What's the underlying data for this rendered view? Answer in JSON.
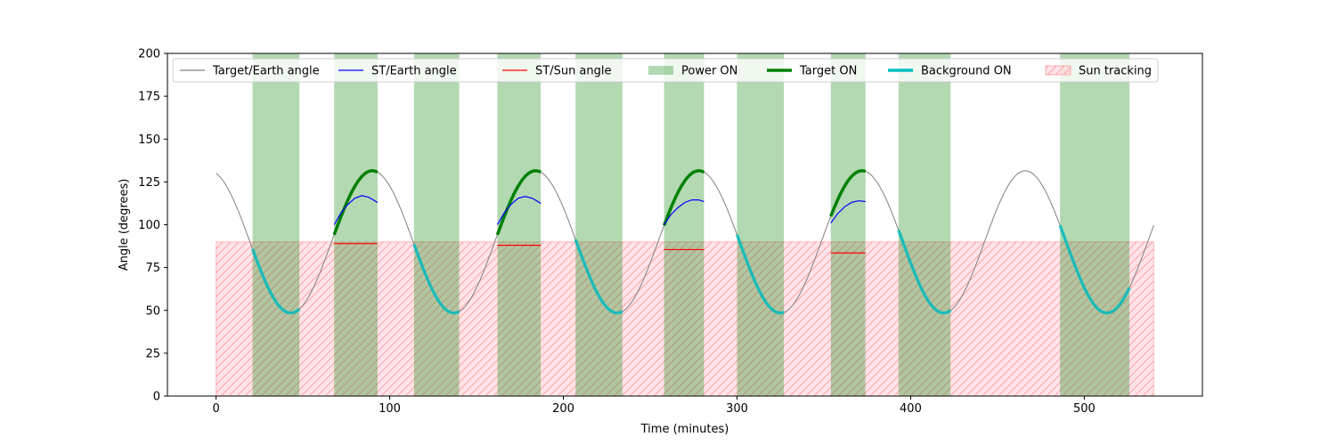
{
  "chart_data": {
    "type": "line",
    "title": "",
    "xlabel": "Time (minutes)",
    "ylabel": "Angle (degrees)",
    "xlim": [
      -28,
      568
    ],
    "ylim": [
      0,
      200
    ],
    "xticks": [
      0,
      100,
      200,
      300,
      400,
      500
    ],
    "yticks": [
      0,
      25,
      50,
      75,
      100,
      125,
      150,
      175,
      200
    ],
    "grid": false,
    "legend_position": "top",
    "legend": [
      {
        "label": "Target/Earth angle",
        "kind": "line",
        "color": "#808080"
      },
      {
        "label": "ST/Earth angle",
        "kind": "line",
        "color": "#0000ff"
      },
      {
        "label": "ST/Sun angle",
        "kind": "line",
        "color": "#ff0000"
      },
      {
        "label": "Power ON",
        "kind": "patch",
        "color": "#008000"
      },
      {
        "label": "Target ON",
        "kind": "thickline",
        "color": "#008000"
      },
      {
        "label": "Background ON",
        "kind": "thickline",
        "color": "#00bfbf"
      },
      {
        "label": "Sun tracking",
        "kind": "hatch",
        "color": "#ff9999"
      }
    ],
    "target_earth_angle": {
      "color": "#808080",
      "mean": 90.0,
      "amplitude": 41.5,
      "period": 94.0,
      "phase_peak_time": 90.0,
      "x_range": [
        0,
        540
      ]
    },
    "sun_tracking": {
      "color": "#ff9999",
      "x_range": [
        0,
        540
      ],
      "y_range": [
        0,
        90
      ]
    },
    "power_on_intervals": [
      [
        21,
        48
      ],
      [
        68,
        93
      ],
      [
        114,
        140
      ],
      [
        162,
        187
      ],
      [
        207,
        234
      ],
      [
        258,
        281
      ],
      [
        300,
        327
      ],
      [
        354,
        374
      ],
      [
        393,
        423
      ],
      [
        486,
        526
      ]
    ],
    "target_on_intervals": [
      [
        68,
        93
      ],
      [
        162,
        187
      ],
      [
        258,
        281
      ],
      [
        354,
        374
      ]
    ],
    "background_on_intervals": [
      [
        21,
        48
      ],
      [
        114,
        140
      ],
      [
        207,
        234
      ],
      [
        300,
        327
      ],
      [
        393,
        423
      ],
      [
        486,
        526
      ]
    ],
    "st_earth_angle_segments": [
      {
        "x": [
          68,
          72,
          76,
          80,
          84,
          88,
          93
        ],
        "y": [
          100,
          107,
          112,
          115.5,
          117,
          116,
          113
        ]
      },
      {
        "x": [
          162,
          166,
          170,
          174,
          178,
          182,
          187
        ],
        "y": [
          100,
          107,
          112,
          115.5,
          116.5,
          115.5,
          112.5
        ]
      },
      {
        "x": [
          258,
          262,
          266,
          270,
          274,
          278,
          281
        ],
        "y": [
          100,
          106,
          110,
          113,
          114.5,
          114.5,
          113.5
        ]
      },
      {
        "x": [
          354,
          358,
          362,
          366,
          370,
          374
        ],
        "y": [
          101,
          106.5,
          110.5,
          113,
          114,
          113.5
        ]
      }
    ],
    "st_sun_angle_segments": [
      {
        "x": [
          68,
          93
        ],
        "y": [
          89,
          89
        ]
      },
      {
        "x": [
          162,
          187
        ],
        "y": [
          88,
          88
        ]
      },
      {
        "x": [
          258,
          281
        ],
        "y": [
          85.5,
          85.5
        ]
      },
      {
        "x": [
          354,
          374
        ],
        "y": [
          83.5,
          83.5
        ]
      }
    ]
  }
}
